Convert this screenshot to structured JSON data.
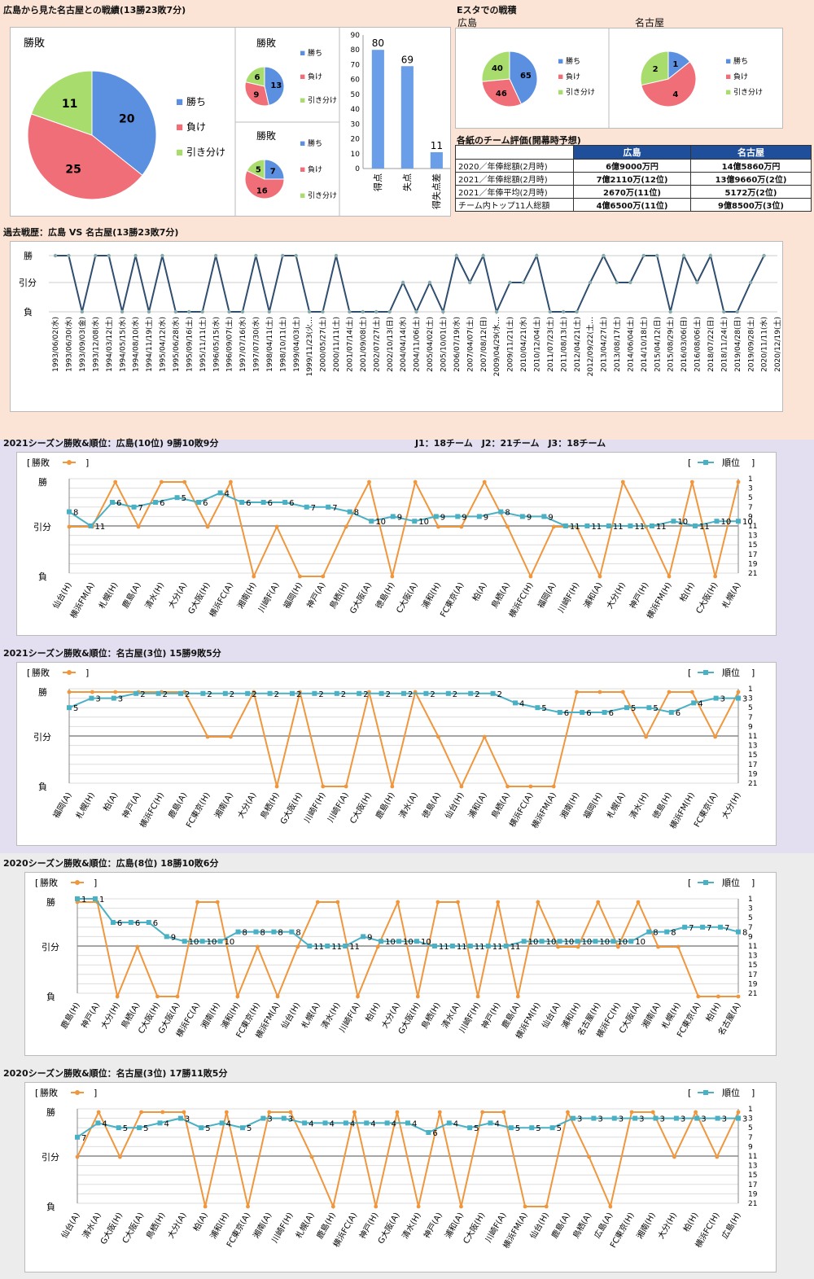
{
  "colors": {
    "win": "#5b8fe0",
    "loss": "#f06e78",
    "draw": "#a8dc6c",
    "result_line": "#f0963c",
    "rank_line": "#4ab0c4",
    "history_line": "#2f4d6e",
    "bar": "#6a9ee8"
  },
  "labels": {
    "win": "勝ち",
    "loss": "負け",
    "draw": "引き分け",
    "pie_title": "勝敗",
    "res_legend": "勝敗",
    "rank_legend": "順位",
    "bracket_open": "[",
    "bracket_close": "]",
    "y_win": "勝",
    "y_draw": "引分",
    "y_loss": "負"
  },
  "overall": {
    "title": "広島から見た名古屋との戦績(13勝23敗7分)",
    "chart_data": [
      {
        "type": "pie",
        "title": "勝敗",
        "categories": [
          "勝ち",
          "負け",
          "引き分け"
        ],
        "values": [
          20,
          25,
          11
        ]
      },
      {
        "type": "pie",
        "title": "勝敗",
        "categories": [
          "勝ち",
          "負け",
          "引き分け"
        ],
        "values": [
          13,
          9,
          6
        ]
      },
      {
        "type": "pie",
        "title": "勝敗",
        "categories": [
          "勝ち",
          "負け",
          "引き分け"
        ],
        "values": [
          7,
          16,
          5
        ]
      },
      {
        "type": "bar",
        "categories": [
          "得点",
          "失点",
          "得失点差"
        ],
        "values": [
          80,
          69,
          11
        ],
        "ylim": [
          0,
          90
        ],
        "yticks": [
          0,
          10,
          20,
          30,
          40,
          50,
          60,
          70,
          80,
          90
        ]
      }
    ]
  },
  "estadium": {
    "title": "Eスタでの戦積",
    "chart_data": [
      {
        "type": "pie",
        "title": "広島",
        "categories": [
          "勝ち",
          "負け",
          "引き分け"
        ],
        "values": [
          65,
          46,
          40
        ]
      },
      {
        "type": "pie",
        "title": "名古屋",
        "categories": [
          "勝ち",
          "負け",
          "引き分け"
        ],
        "values": [
          1,
          4,
          2
        ]
      }
    ]
  },
  "evaluation": {
    "title": "各紙のチーム評価(開幕時予想)",
    "headers": [
      "",
      "広島",
      "名古屋"
    ],
    "rows": [
      [
        "2020／年俸総額(2月時)",
        "6億9000万円",
        "14億5860万円"
      ],
      [
        "2021／年俸総額(2月時)",
        "7億2110万(12位)",
        "13億9660万(2位)"
      ],
      [
        "2021／年俸平均(2月時)",
        "2670万(11位)",
        "5172万(2位)"
      ],
      [
        "チーム内トップ11人総額",
        "4億6500万(11位)",
        "9億8500万(3位)"
      ]
    ]
  },
  "history": {
    "title": "過去戦歴：広島 VS 名古屋(13勝23敗7分)",
    "chart_data": {
      "type": "line",
      "y_levels": [
        "勝",
        "引分",
        "負"
      ],
      "results": [
        "W",
        "W",
        "L",
        "W",
        "W",
        "L",
        "W",
        "L",
        "W",
        "L",
        "L",
        "L",
        "W",
        "L",
        "L",
        "W",
        "L",
        "W",
        "W",
        "L",
        "L",
        "W",
        "L",
        "L",
        "L",
        "L",
        "D",
        "L",
        "D",
        "L",
        "W",
        "D",
        "W",
        "L",
        "D",
        "D",
        "W",
        "L",
        "L",
        "L",
        "D",
        "W",
        "D",
        "D",
        "W",
        "W",
        "L",
        "W",
        "D",
        "W",
        "L",
        "L",
        "D",
        "W"
      ],
      "tick_labels": [
        "1993/06/02(水)",
        "1993/06/30(水)",
        "1993/09/03(金)",
        "1993/12/08(水)",
        "1994/03/12(土)",
        "1994/05/15(水)",
        "1994/08/10(水)",
        "1994/11/19(土)",
        "1995/04/12(水)",
        "1995/06/28(水)",
        "1995/09/16(土)",
        "1995/11/11(土)",
        "1996/05/15(水)",
        "1996/09/07(土)",
        "1997/07/16(水)",
        "1997/07/30(水)",
        "1998/04/11(土)",
        "1998/10/11(土)",
        "1999/04/03(土)",
        "1999/11/23(火…",
        "2000/05/27(土)",
        "2000/11/11(土)",
        "2001/07/14(土)",
        "2001/09/08(土)",
        "2002/07/27(土)",
        "2002/10/13(日)",
        "2004/04/14(水)",
        "2004/11/06(土)",
        "2005/04/02(土)",
        "2005/10/01(土)",
        "2006/07/19(水)",
        "2007/04/07(土)",
        "2007/08/12(日)",
        "2009/04/29(水…",
        "2009/11/21(土)",
        "2010/04/21(水)",
        "2010/12/04(土)",
        "2011/07/23(土)",
        "2011/08/13(土)",
        "2012/04/21(土)",
        "2012/09/22(土…",
        "2013/04/27(土)",
        "2013/08/17(土)",
        "2014/06/04(土)",
        "2014/10/18(土)",
        "2015/04/12(日)",
        "2015/08/29(土)",
        "2016/03/06(日)",
        "2016/08/06(土)",
        "2018/07/22(日)",
        "2018/11/24(土)",
        "2019/04/28(日)",
        "2019/09/28(土)",
        "2020/11/11(水)",
        "2020/12/19(土)"
      ]
    }
  },
  "season_note": "J1：18チーム　J2：21チーム　J3：18チーム",
  "seasons": [
    {
      "title": "2021シーズン勝敗&順位：広島(10位) 9勝10敗9分",
      "chart_data": {
        "type": "line",
        "y_rank_ticks": [
          1,
          3,
          5,
          7,
          9,
          11,
          13,
          15,
          17,
          19,
          21
        ],
        "opponents": [
          "仙台(H)",
          "横浜FM(A)",
          "札幌(H)",
          "鹿島(A)",
          "清水(H)",
          "大分(A)",
          "G大阪(H)",
          "横浜FC(A)",
          "湘南(H)",
          "川崎F(A)",
          "福岡(H)",
          "神戸(A)",
          "鳥栖(H)",
          "G大阪(A)",
          "徳島(H)",
          "C大阪(A)",
          "浦和(H)",
          "FC東京(A)",
          "柏(A)",
          "鳥栖(A)",
          "横浜FC(H)",
          "福岡(A)",
          "川崎F(H)",
          "浦和(A)",
          "大分(H)",
          "神戸(H)",
          "横浜FM(H)",
          "柏(H)",
          "C大阪(H)",
          "札幌(A)"
        ],
        "results": [
          "D",
          "D",
          "W",
          "D",
          "W",
          "W",
          "D",
          "W",
          "L",
          "D",
          "L",
          "L",
          "D",
          "W",
          "L",
          "W",
          "D",
          "D",
          "W",
          "D",
          "L",
          "D",
          "D",
          "L",
          "W",
          "D",
          "L",
          "W",
          "L",
          "W"
        ],
        "ranks": [
          8,
          11,
          6,
          7,
          6,
          5,
          6,
          4,
          6,
          6,
          6,
          7,
          7,
          8,
          10,
          9,
          10,
          9,
          9,
          9,
          8,
          9,
          9,
          11,
          11,
          11,
          11,
          11,
          10,
          11,
          10,
          10
        ],
        "rank_labels": [
          "8",
          "11",
          "6",
          "7",
          "6",
          "5",
          "6",
          "4",
          "6",
          "6",
          "6",
          "7",
          "7",
          "8",
          "10",
          "9",
          "10",
          "9",
          "9",
          "9",
          "8",
          "9",
          "9",
          "11",
          "11",
          "11",
          "11",
          "11",
          "10",
          "11",
          "10",
          "10"
        ]
      }
    },
    {
      "title": "2021シーズン勝敗&順位：名古屋(3位) 15勝9敗5分",
      "chart_data": {
        "type": "line",
        "y_rank_ticks": [
          1,
          3,
          5,
          7,
          9,
          11,
          13,
          15,
          17,
          19,
          21
        ],
        "opponents": [
          "福岡(A)",
          "札幌(H)",
          "柏(A)",
          "神戸(A)",
          "横浜FC(H)",
          "鹿島(A)",
          "FC東京(H)",
          "湘南(A)",
          "大分(A)",
          "鳥栖(H)",
          "G大阪(H)",
          "川崎F(H)",
          "川崎F(A)",
          "C大阪(H)",
          "鹿島(H)",
          "清水(A)",
          "徳島(A)",
          "仙台(H)",
          "浦和(A)",
          "鳥栖(A)",
          "横浜FC(A)",
          "横浜FM(A)",
          "湘南(H)",
          "福岡(H)",
          "札幌(A)",
          "清水(H)",
          "徳島(H)",
          "横浜FM(H)",
          "FC東京(A)",
          "大分(H)"
        ],
        "results": [
          "W",
          "W",
          "W",
          "W",
          "W",
          "W",
          "D",
          "D",
          "W",
          "L",
          "W",
          "L",
          "L",
          "W",
          "L",
          "W",
          "D",
          "L",
          "D",
          "L",
          "L",
          "L",
          "W",
          "W",
          "W",
          "D",
          "W",
          "W",
          "D",
          "W"
        ],
        "ranks": [
          5,
          3,
          3,
          2,
          2,
          2,
          2,
          2,
          2,
          2,
          2,
          2,
          2,
          2,
          2,
          2,
          2,
          2,
          2,
          2,
          4,
          5,
          6,
          6,
          6,
          5,
          5,
          6,
          4,
          3,
          3
        ],
        "rank_labels": [
          "5",
          "3",
          "3",
          "2",
          "2",
          "2",
          "2",
          "2",
          "2",
          "2",
          "2",
          "2",
          "2",
          "2",
          "2",
          "2",
          "2",
          "2",
          "2",
          "2",
          "4",
          "5",
          "6",
          "6",
          "6",
          "5",
          "5",
          "6",
          "4",
          "3",
          "3"
        ]
      }
    },
    {
      "title": "2020シーズン勝敗&順位：広島(8位) 18勝10敗6分",
      "chart_data": {
        "type": "line",
        "y_rank_ticks": [
          1,
          3,
          5,
          7,
          9,
          11,
          13,
          15,
          17,
          19,
          21
        ],
        "opponents": [
          "鹿島(H)",
          "神戸(A)",
          "大分(H)",
          "鳥栖(A)",
          "C大阪(H)",
          "G大阪(A)",
          "横浜FC(A)",
          "湘南(H)",
          "浦和(H)",
          "FC東京(H)",
          "横浜FM(A)",
          "仙台(H)",
          "札幌(A)",
          "清水(H)",
          "川崎F(A)",
          "柏(H)",
          "大分(A)",
          "G大阪(H)",
          "鳥栖(H)",
          "清水(A)",
          "川崎F(H)",
          "神戸(H)",
          "鹿島(A)",
          "横浜FM(H)",
          "仙台(A)",
          "浦和(H)",
          "名古屋(H)",
          "横浜FC(H)",
          "C大阪(A)",
          "湘南(A)",
          "札幌(H)",
          "FC東京(A)",
          "柏(H)",
          "名古屋(A)"
        ],
        "results": [
          "W",
          "W",
          "L",
          "D",
          "L",
          "L",
          "W",
          "W",
          "L",
          "D",
          "L",
          "D",
          "W",
          "W",
          "L",
          "D",
          "W",
          "L",
          "W",
          "W",
          "L",
          "W",
          "L",
          "W",
          "D",
          "D",
          "W",
          "D",
          "W",
          "D",
          "D",
          "L",
          "L",
          "L"
        ],
        "ranks": [
          1,
          1,
          6,
          6,
          6,
          9,
          10,
          10,
          10,
          8,
          8,
          8,
          8,
          11,
          11,
          11,
          9,
          10,
          10,
          10,
          11,
          11,
          11,
          11,
          11,
          10,
          10,
          10,
          10,
          10,
          10,
          10,
          8,
          8,
          7,
          7,
          7,
          8
        ],
        "rank_labels": [
          "1",
          "1",
          "6",
          "6",
          "6",
          "9",
          "10",
          "10",
          "10",
          "8",
          "8",
          "8",
          "8",
          "11",
          "11",
          "11",
          "9",
          "10",
          "10",
          "10",
          "11",
          "11",
          "11",
          "11",
          "11",
          "10",
          "10",
          "10",
          "10",
          "10",
          "10",
          "10",
          "8",
          "8",
          "7",
          "7",
          "7",
          "8"
        ]
      }
    },
    {
      "title": "2020シーズン勝敗&順位：名古屋(3位) 17勝11敗5分",
      "chart_data": {
        "type": "line",
        "y_rank_ticks": [
          1,
          3,
          5,
          7,
          9,
          11,
          13,
          15,
          17,
          19,
          21
        ],
        "opponents": [
          "仙台(A)",
          "清水(A)",
          "G大阪(H)",
          "C大阪(A)",
          "鳥栖(H)",
          "大分(A)",
          "柏(A)",
          "浦和(H)",
          "FC東京(A)",
          "湘南(A)",
          "川崎F(H)",
          "札幌(A)",
          "鹿島(H)",
          "横浜FC(A)",
          "神戸(H)",
          "G大阪(A)",
          "清水(H)",
          "神戸(A)",
          "浦和(A)",
          "C大阪(H)",
          "川崎F(A)",
          "横浜FM(A)",
          "仙台(H)",
          "鹿島(A)",
          "鳥栖(A)",
          "広島(A)",
          "FC東京(H)",
          "湘南(H)",
          "大分(H)",
          "柏(H)",
          "横浜FC(H)",
          "広島(H)"
        ],
        "results": [
          "D",
          "W",
          "D",
          "W",
          "W",
          "W",
          "L",
          "W",
          "L",
          "W",
          "W",
          "D",
          "L",
          "W",
          "L",
          "W",
          "L",
          "W",
          "L",
          "W",
          "W",
          "L",
          "L",
          "W",
          "D",
          "L",
          "W",
          "W",
          "D",
          "W",
          "D",
          "W"
        ],
        "ranks": [
          7,
          4,
          5,
          5,
          4,
          3,
          5,
          4,
          5,
          3,
          3,
          4,
          4,
          4,
          4,
          4,
          4,
          6,
          4,
          5,
          4,
          5,
          5,
          5,
          3,
          3,
          3,
          3,
          3,
          3,
          3,
          3,
          3
        ],
        "rank_labels": [
          "7",
          "4",
          "5",
          "5",
          "4",
          "3",
          "5",
          "4",
          "5",
          "3",
          "3",
          "4",
          "4",
          "4",
          "4",
          "4",
          "4",
          "6",
          "4",
          "5",
          "4",
          "5",
          "5",
          "5",
          "3",
          "3",
          "3",
          "3",
          "3",
          "3",
          "3",
          "3",
          "3"
        ]
      }
    }
  ]
}
